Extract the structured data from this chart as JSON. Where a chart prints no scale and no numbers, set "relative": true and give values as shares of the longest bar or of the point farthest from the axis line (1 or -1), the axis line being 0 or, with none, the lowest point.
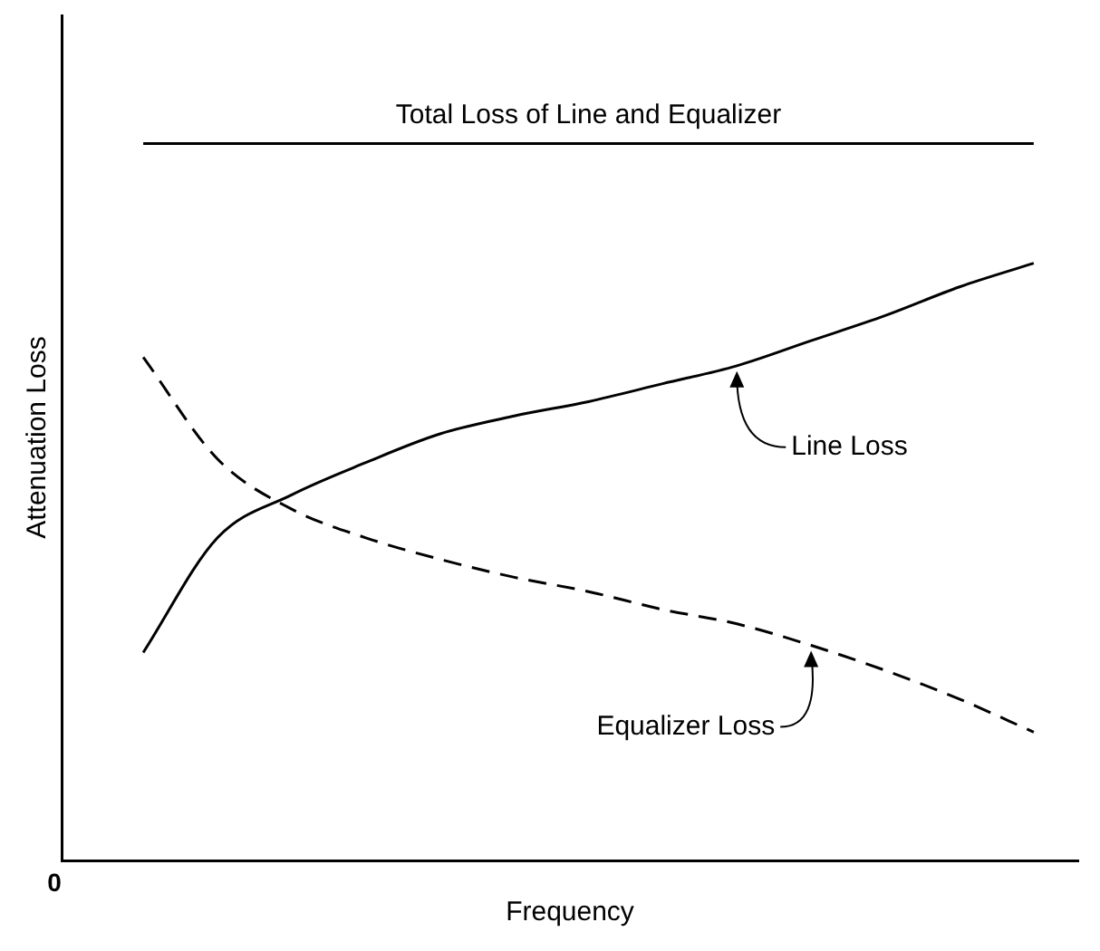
{
  "chart_data": {
    "type": "line",
    "relative": true,
    "xlabel": "Frequency",
    "ylabel": "Attenuation Loss",
    "annotations": [
      "0"
    ],
    "grid": false,
    "legend": false,
    "marker": "none",
    "categories": [
      null,
      null,
      null,
      null,
      null,
      null,
      null,
      null,
      null,
      null,
      null,
      null,
      null
    ],
    "series": [
      {
        "name": "Total Loss of Line and Equalizer",
        "color": "#000000",
        "line_style": "solid",
        "values": [
          1,
          1,
          1,
          1,
          1,
          1,
          1,
          1,
          1,
          1,
          1,
          1,
          1
        ]
      },
      {
        "name": "Line Loss",
        "color": "#000000",
        "line_style": "solid",
        "values": [
          0.29,
          0.45,
          0.51,
          0.555,
          0.595,
          0.62,
          0.64,
          0.665,
          0.69,
          0.725,
          0.76,
          0.8,
          0.833
        ]
      },
      {
        "name": "Equalizer Loss",
        "color": "#000000",
        "line_style": "dashed",
        "values": [
          0.702,
          0.56,
          0.49,
          0.45,
          0.42,
          0.395,
          0.375,
          0.35,
          0.33,
          0.3,
          0.265,
          0.225,
          0.179
        ]
      }
    ]
  }
}
